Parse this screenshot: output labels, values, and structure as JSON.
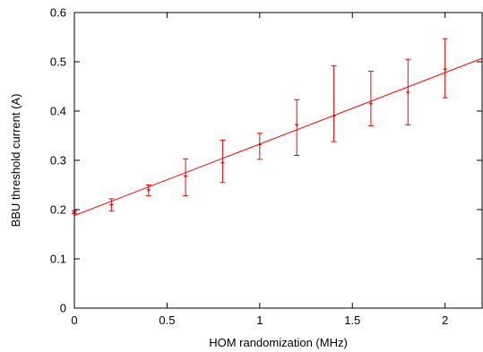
{
  "chart_data": {
    "type": "scatter",
    "xlabel": "HOM randomization (MHz)",
    "ylabel": "BBU threshold current (A)",
    "xlim": [
      0,
      2.2
    ],
    "ylim": [
      0,
      0.6
    ],
    "xticks": [
      0,
      0.5,
      1,
      1.5,
      2
    ],
    "xtick_labels": [
      "0",
      "0.5",
      "1",
      "1.5",
      "2"
    ],
    "yticks": [
      0,
      0.1,
      0.2,
      0.3,
      0.4,
      0.5,
      0.6
    ],
    "ytick_labels": [
      "0",
      "0.1",
      "0.2",
      "0.3",
      "0.4",
      "0.5",
      "0.6"
    ],
    "grid": false,
    "color": "#ff0000",
    "series": [
      {
        "x": [
          0,
          0.2,
          0.4,
          0.6,
          0.8,
          1.0,
          1.2,
          1.4,
          1.6,
          1.8,
          2.0
        ],
        "y": [
          0.195,
          0.21,
          0.24,
          0.268,
          0.295,
          0.332,
          0.372,
          0.39,
          0.415,
          0.438,
          0.485
        ],
        "y_err_low": [
          0.192,
          0.197,
          0.228,
          0.228,
          0.255,
          0.302,
          0.31,
          0.338,
          0.37,
          0.372,
          0.427
        ],
        "y_err_high": [
          0.198,
          0.222,
          0.25,
          0.303,
          0.341,
          0.355,
          0.423,
          0.492,
          0.481,
          0.505,
          0.547
        ]
      }
    ],
    "fit_line": {
      "x": [
        0,
        2.2
      ],
      "y": [
        0.188,
        0.507
      ]
    }
  }
}
